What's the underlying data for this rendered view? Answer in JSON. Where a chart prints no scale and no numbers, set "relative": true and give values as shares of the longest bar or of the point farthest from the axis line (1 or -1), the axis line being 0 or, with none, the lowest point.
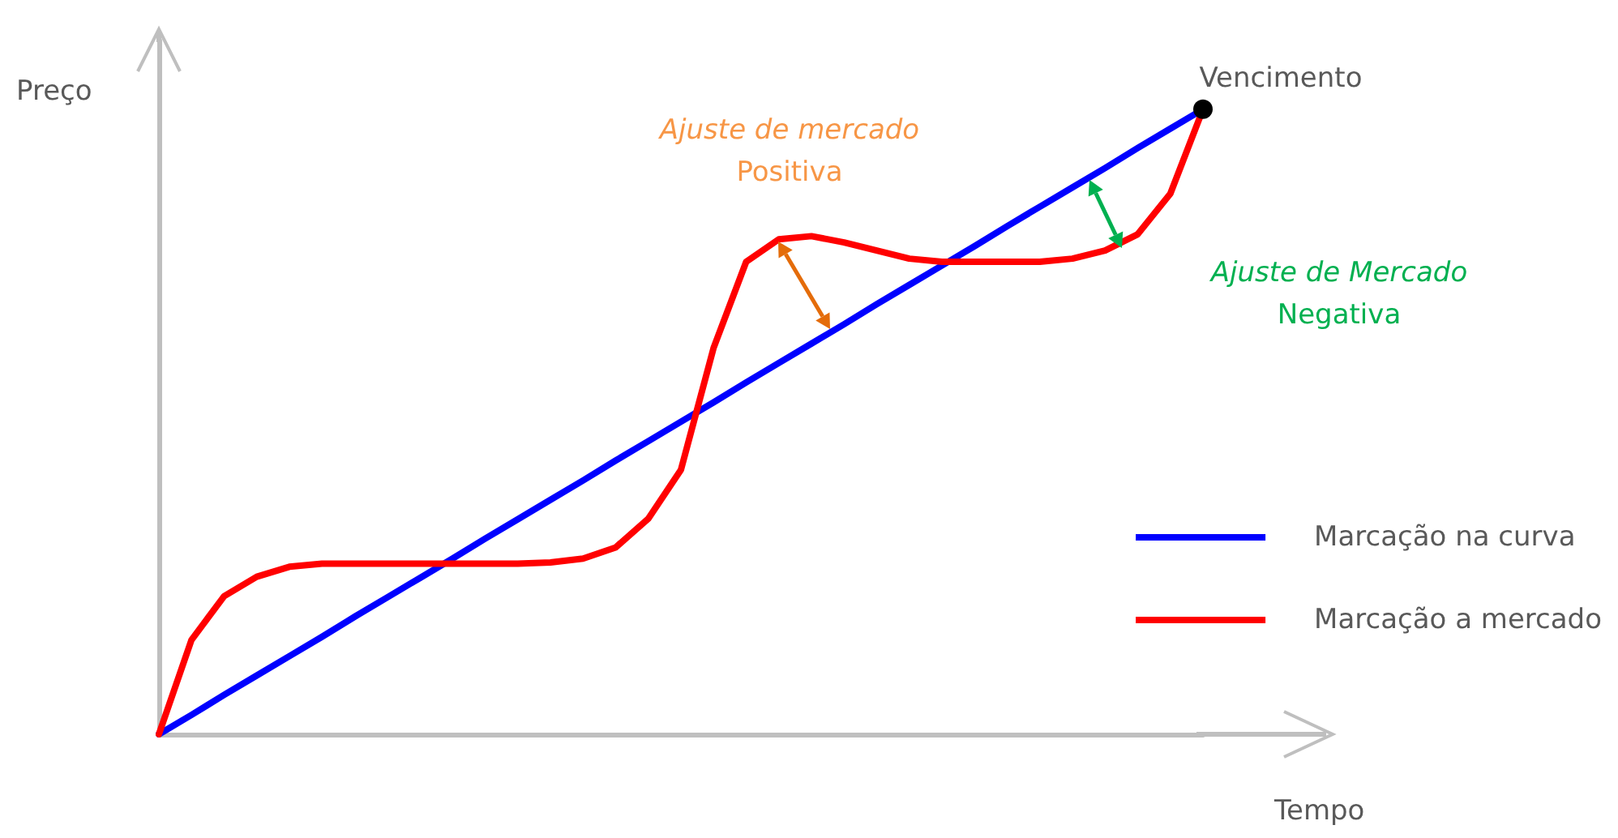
{
  "chart_data": {
    "type": "line",
    "relative": true,
    "xlabel": "Tempo",
    "ylabel": "Preço",
    "categories": [
      null,
      null,
      null,
      null,
      null,
      null,
      null,
      null,
      null,
      null,
      null,
      null,
      null,
      null,
      null,
      null,
      null,
      null,
      null,
      null,
      null,
      null,
      null,
      null,
      null,
      null,
      null,
      null,
      null,
      null,
      null,
      null,
      null
    ],
    "series": [
      {
        "name": "Marcação na curva",
        "color": "#0000ff",
        "values": [
          0,
          0.031,
          0.063,
          0.094,
          0.125,
          0.156,
          0.188,
          0.219,
          0.25,
          0.281,
          0.313,
          0.344,
          0.375,
          0.406,
          0.438,
          0.469,
          0.5,
          0.531,
          0.563,
          0.594,
          0.625,
          0.656,
          0.688,
          0.719,
          0.75,
          0.781,
          0.813,
          0.844,
          0.875,
          0.906,
          0.938,
          0.969,
          1
        ]
      },
      {
        "name": "Marcação a mercado",
        "color": "#ff0000",
        "values": [
          0,
          0.151,
          0.221,
          0.252,
          0.268,
          0.273,
          0.273,
          0.273,
          0.273,
          0.273,
          0.273,
          0.273,
          0.275,
          0.281,
          0.299,
          0.345,
          0.423,
          0.618,
          0.756,
          0.792,
          0.797,
          0.787,
          0.774,
          0.761,
          0.756,
          0.756,
          0.756,
          0.756,
          0.761,
          0.774,
          0.8,
          0.865,
          1
        ]
      }
    ],
    "annotations": [
      "Vencimento",
      "Ajuste de mercado\nPositiva",
      "Ajuste de Mercado\nNegativa"
    ],
    "legend": "right",
    "grid": false,
    "marker": "none",
    "line_style": "solid"
  }
}
